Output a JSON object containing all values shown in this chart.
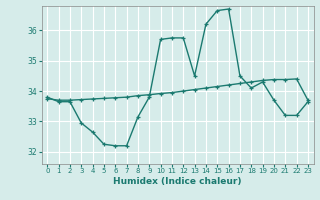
{
  "title": "",
  "xlabel": "Humidex (Indice chaleur)",
  "ylabel": "",
  "bg_color": "#d6ecea",
  "grid_color": "#ffffff",
  "line_color": "#1b7a70",
  "x_ticks": [
    0,
    1,
    2,
    3,
    4,
    5,
    6,
    7,
    8,
    9,
    10,
    11,
    12,
    13,
    14,
    15,
    16,
    17,
    18,
    19,
    20,
    21,
    22,
    23
  ],
  "y_ticks": [
    32,
    33,
    34,
    35,
    36
  ],
  "ylim": [
    31.6,
    36.8
  ],
  "xlim": [
    -0.5,
    23.5
  ],
  "series1_x": [
    0,
    1,
    2,
    3,
    4,
    5,
    6,
    7,
    8,
    9,
    10,
    11,
    12,
    13,
    14,
    15,
    16,
    17,
    18,
    19,
    20,
    21,
    22,
    23
  ],
  "series1_y": [
    33.8,
    33.65,
    33.65,
    32.95,
    32.65,
    32.25,
    32.2,
    32.2,
    33.15,
    33.8,
    35.7,
    35.75,
    35.75,
    34.5,
    36.2,
    36.65,
    36.7,
    34.5,
    34.1,
    34.3,
    33.7,
    33.2,
    33.2,
    33.65
  ],
  "series2_x": [
    0,
    1,
    2,
    3,
    4,
    5,
    6,
    7,
    8,
    9,
    10,
    11,
    12,
    13,
    14,
    15,
    16,
    17,
    18,
    19,
    20,
    21,
    22,
    23
  ],
  "series2_y": [
    33.75,
    33.7,
    33.7,
    33.72,
    33.74,
    33.76,
    33.78,
    33.8,
    33.85,
    33.88,
    33.92,
    33.95,
    34.0,
    34.05,
    34.1,
    34.15,
    34.2,
    34.25,
    34.3,
    34.35,
    34.38,
    34.38,
    34.4,
    33.7
  ]
}
